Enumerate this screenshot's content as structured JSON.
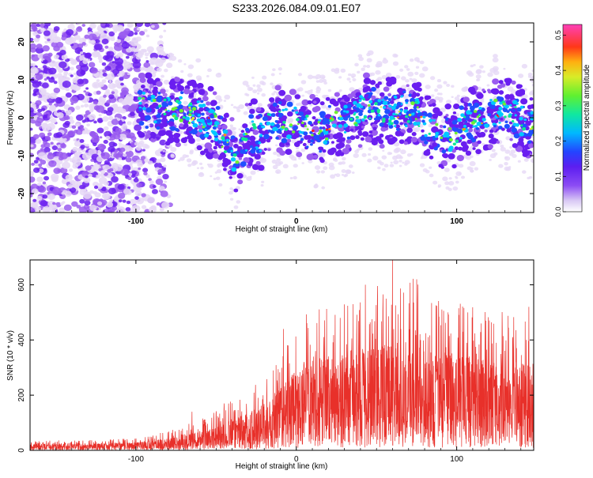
{
  "title": "S233.2026.084.09.01.E07",
  "chart_data": [
    {
      "type": "heatmap",
      "xlabel": "Height of straight line (km)",
      "ylabel": "Frequency (Hz)",
      "xlim": [
        -166,
        148
      ],
      "ylim": [
        -25,
        25
      ],
      "xticks": [
        -100,
        0,
        100
      ],
      "yticks": [
        -20,
        -10,
        0,
        10,
        20
      ],
      "colorbar": {
        "label": "Normalized spectral amplitude",
        "range": [
          0.0,
          0.53
        ],
        "ticks": [
          "0.0",
          "0.1",
          "0.2",
          "0.3",
          "0.4",
          "0.5"
        ],
        "colors": [
          "#e6d8f6",
          "#9a5cf0",
          "#6a1ef0",
          "#2050ff",
          "#00c8ff",
          "#10e890",
          "#70f030",
          "#d8e830",
          "#ff9010",
          "#ff2020",
          "#ff40b0"
        ]
      },
      "band_center_hz": [
        [
          -95,
          3
        ],
        [
          -80,
          2
        ],
        [
          -65,
          1
        ],
        [
          -50,
          -2
        ],
        [
          -42,
          -8
        ],
        [
          -37,
          -11
        ],
        [
          -30,
          -4
        ],
        [
          -22,
          -5
        ],
        [
          -15,
          0
        ],
        [
          -5,
          -1
        ],
        [
          5,
          -2
        ],
        [
          15,
          -4
        ],
        [
          25,
          -1
        ],
        [
          35,
          0
        ],
        [
          45,
          3
        ],
        [
          55,
          1
        ],
        [
          65,
          2
        ],
        [
          75,
          1
        ],
        [
          85,
          -3
        ],
        [
          95,
          -6
        ],
        [
          105,
          -2
        ],
        [
          115,
          0
        ],
        [
          125,
          2
        ],
        [
          135,
          1
        ],
        [
          145,
          -2
        ]
      ]
    },
    {
      "type": "line",
      "xlabel": "Height of straight line (km)",
      "ylabel": "SNR (10 * v/v)",
      "xlim": [
        -166,
        148
      ],
      "ylim": [
        0,
        690
      ],
      "xticks": [
        -100,
        0,
        100
      ],
      "yticks": [
        0,
        200,
        400,
        600
      ],
      "color": "#e8302a",
      "envelope": {
        "x": [
          -166,
          -120,
          -100,
          -80,
          -60,
          -40,
          -20,
          -10,
          0,
          10,
          30,
          50,
          70,
          90,
          110,
          130,
          148
        ],
        "baseline": [
          15,
          15,
          18,
          22,
          35,
          55,
          90,
          130,
          160,
          180,
          195,
          200,
          200,
          195,
          190,
          185,
          180
        ],
        "peak_max": [
          35,
          38,
          45,
          70,
          110,
          180,
          260,
          350,
          450,
          520,
          560,
          600,
          640,
          560,
          520,
          500,
          480
        ]
      },
      "notable_peaks": [
        [
          -65,
          140
        ],
        [
          -45,
          170
        ],
        [
          -8,
          440
        ],
        [
          60,
          690
        ],
        [
          43,
          600
        ],
        [
          75,
          620
        ],
        [
          145,
          520
        ]
      ]
    }
  ]
}
